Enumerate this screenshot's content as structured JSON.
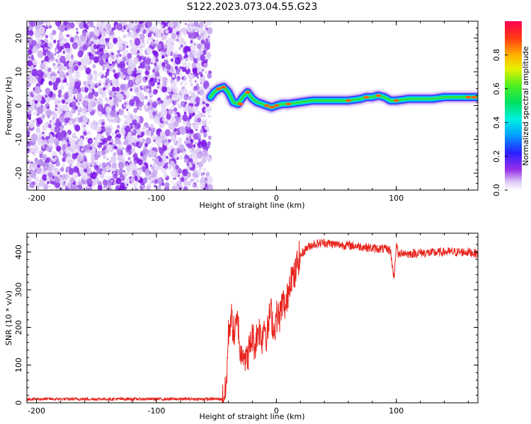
{
  "title": "S122.2023.073.04.55.G23",
  "chart_data": [
    {
      "type": "heatmap",
      "xlabel": "Height of straight line (km)",
      "ylabel": "Frequency (Hz)",
      "xlim": [
        -208,
        168
      ],
      "ylim": [
        -25,
        25
      ],
      "xticks": [
        -200,
        -100,
        0,
        100
      ],
      "yticks": [
        20,
        10,
        0,
        -10,
        -20
      ],
      "colorbar": {
        "label": "Normalized spectral amplitude",
        "range": [
          0,
          1
        ],
        "ticks": [
          0.0,
          0.2,
          0.4,
          0.6,
          0.8
        ]
      },
      "noise_region": {
        "x_start": -208,
        "x_end": -55
      },
      "ridge": {
        "x": [
          -55,
          -52,
          -48,
          -44,
          -40,
          -36,
          -32,
          -28,
          -24,
          -20,
          -16,
          -12,
          -8,
          -4,
          0,
          5,
          10,
          20,
          30,
          40,
          50,
          60,
          70,
          75,
          80,
          85,
          90,
          95,
          100,
          110,
          120,
          130,
          140,
          150,
          160,
          168
        ],
        "y": [
          2.5,
          4.0,
          5.0,
          5.5,
          4.0,
          1.0,
          0.5,
          2.5,
          4.0,
          2.0,
          1.0,
          0.5,
          0.0,
          -0.5,
          0.0,
          0.5,
          0.5,
          1.0,
          1.5,
          1.5,
          1.5,
          1.5,
          2.0,
          2.5,
          2.5,
          3.0,
          2.5,
          1.5,
          1.5,
          2.0,
          2.0,
          2.0,
          2.5,
          2.5,
          2.5,
          2.5
        ]
      }
    },
    {
      "type": "line",
      "xlabel": "Height of straight line (km)",
      "ylabel": "SNR (10 * v/v)",
      "xlim": [
        -208,
        168
      ],
      "ylim": [
        0,
        450
      ],
      "xticks": [
        -200,
        -100,
        0,
        100
      ],
      "yticks": [
        0,
        100,
        200,
        300,
        400
      ],
      "color": "#e8231c",
      "series": [
        {
          "x": [
            -208,
            -150,
            -100,
            -60,
            -45,
            -42,
            -40,
            -38,
            -35,
            -32,
            -30,
            -28,
            -25,
            -22,
            -20,
            -18,
            -15,
            -12,
            -10,
            -8,
            -5,
            -2,
            0,
            3,
            5,
            8,
            10,
            12,
            15,
            18,
            20,
            25,
            30,
            40,
            50,
            60,
            70,
            80,
            90,
            95,
            98,
            100,
            102,
            105,
            110,
            120,
            130,
            140,
            150,
            160,
            168
          ],
          "y": [
            10,
            10,
            10,
            10,
            10,
            30,
            180,
            230,
            180,
            220,
            120,
            150,
            110,
            150,
            180,
            150,
            200,
            170,
            220,
            170,
            250,
            190,
            230,
            230,
            270,
            250,
            300,
            340,
            330,
            380,
            390,
            410,
            420,
            425,
            420,
            418,
            415,
            410,
            408,
            405,
            330,
            420,
            390,
            400,
            395,
            398,
            398,
            400,
            400,
            400,
            395
          ]
        }
      ]
    }
  ]
}
